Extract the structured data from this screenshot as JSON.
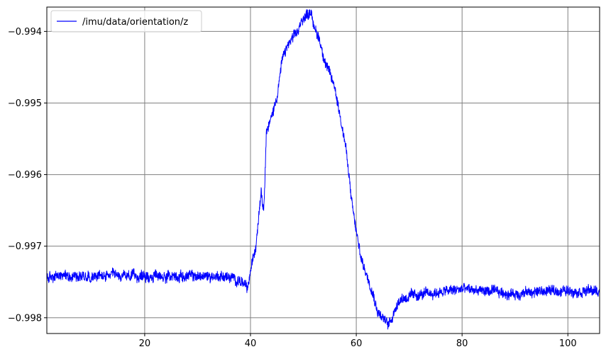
{
  "chart_data": {
    "type": "line",
    "title": "",
    "xlabel": "",
    "ylabel": "",
    "xlim": [
      1.5,
      106.0
    ],
    "ylim": [
      -0.99822,
      -0.99366
    ],
    "grid": true,
    "legend": {
      "placement": "top-left"
    },
    "x_ticks": [
      {
        "value": 20,
        "label": "20"
      },
      {
        "value": 40,
        "label": "40"
      },
      {
        "value": 60,
        "label": "60"
      },
      {
        "value": 80,
        "label": "80"
      },
      {
        "value": 100,
        "label": "100"
      }
    ],
    "y_ticks": [
      {
        "value": -0.998,
        "label": "−0.998"
      },
      {
        "value": -0.997,
        "label": "−0.997"
      },
      {
        "value": -0.996,
        "label": "−0.996"
      },
      {
        "value": -0.995,
        "label": "−0.995"
      },
      {
        "value": -0.994,
        "label": "−0.994"
      }
    ],
    "series": [
      {
        "name": "/imu/data/orientation/z",
        "color": "#0000ff",
        "x": [
          1.5,
          5,
          10,
          15,
          20,
          25,
          30,
          35,
          38,
          39.5,
          40,
          41,
          42,
          42.5,
          43,
          44,
          45,
          46,
          47,
          48,
          49,
          50,
          51,
          51.5,
          52,
          53,
          54,
          55,
          56,
          57,
          58,
          59,
          60,
          61,
          62,
          63,
          64,
          65,
          66,
          67,
          68,
          70,
          75,
          80,
          85,
          90,
          95,
          100,
          106
        ],
        "y": [
          -0.99745,
          -0.9974,
          -0.99742,
          -0.99742,
          -0.99742,
          -0.99742,
          -0.99742,
          -0.99742,
          -0.99748,
          -0.9976,
          -0.99735,
          -0.997,
          -0.9962,
          -0.9965,
          -0.9954,
          -0.9952,
          -0.9949,
          -0.9944,
          -0.9942,
          -0.9941,
          -0.994,
          -0.9938,
          -0.99375,
          -0.9937,
          -0.99395,
          -0.9941,
          -0.9944,
          -0.9946,
          -0.9948,
          -0.9952,
          -0.9956,
          -0.9963,
          -0.9968,
          -0.9972,
          -0.9974,
          -0.9976,
          -0.9979,
          -0.998,
          -0.9981,
          -0.99795,
          -0.99775,
          -0.9977,
          -0.99765,
          -0.9976,
          -0.99763,
          -0.99767,
          -0.99763,
          -0.99762,
          -0.99763
        ]
      }
    ]
  }
}
